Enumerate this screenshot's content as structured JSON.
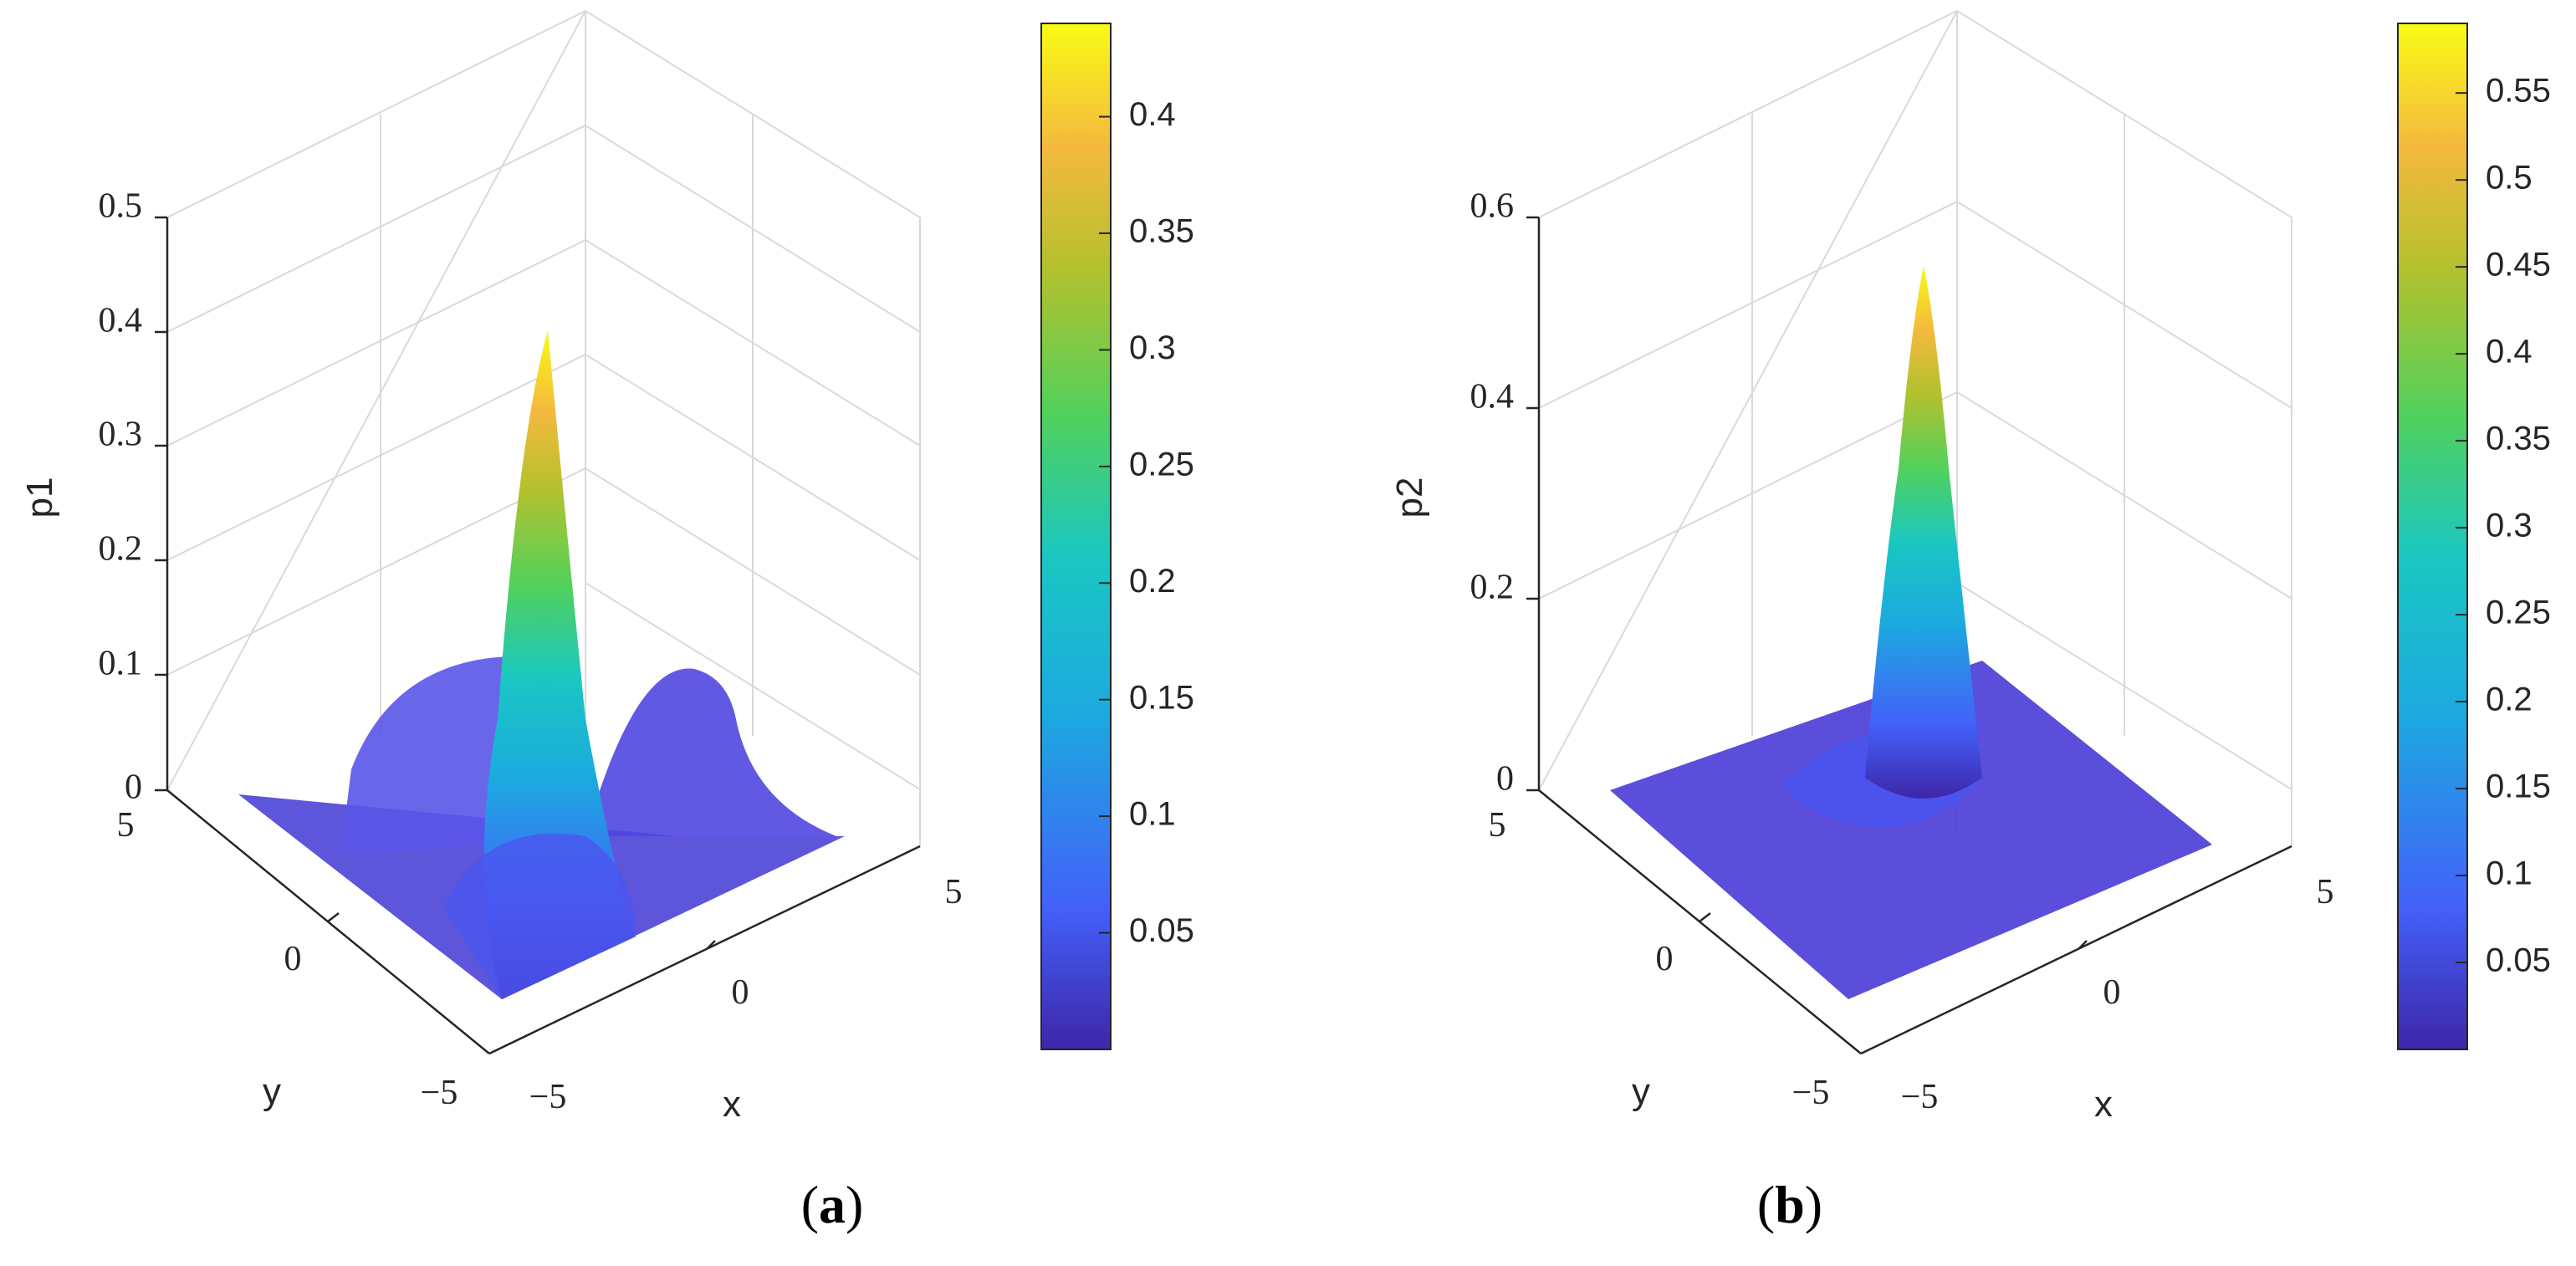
{
  "chart_data": [
    {
      "type": "surface",
      "panel": "a",
      "caption": {
        "open": "(",
        "letter": "a",
        "close": ")"
      },
      "zlabel": "p1",
      "xlabel": "x",
      "ylabel": "y",
      "x_ticks": [
        "−5",
        "0",
        "5"
      ],
      "y_ticks": [
        "−5",
        "0",
        "5"
      ],
      "z_ticks": [
        "0",
        "0.1",
        "0.2",
        "0.3",
        "0.4",
        "0.5"
      ],
      "xlim": [
        -5,
        5
      ],
      "ylim": [
        -5,
        5
      ],
      "zlim": [
        0,
        0.5
      ],
      "peak": 0.4,
      "peak_location": [
        0,
        0
      ],
      "shape": "central gaussian peak with ridges along the x and y axes",
      "colorbar": {
        "range": [
          0,
          0.44
        ],
        "ticks": [
          0.05,
          0.1,
          0.15,
          0.2,
          0.25,
          0.3,
          0.35,
          0.4
        ],
        "tick_labels": [
          "0.05",
          "0.1",
          "0.15",
          "0.2",
          "0.25",
          "0.3",
          "0.35",
          "0.4"
        ]
      },
      "colormap": [
        "#3e26a8",
        "#4361fa",
        "#1caadf",
        "#1ac7c2",
        "#52d15b",
        "#b3c12e",
        "#f4b93e",
        "#f9fb15"
      ]
    },
    {
      "type": "surface",
      "panel": "b",
      "caption": {
        "open": "(",
        "letter": "b",
        "close": ")"
      },
      "zlabel": "p2",
      "xlabel": "x",
      "ylabel": "y",
      "x_ticks": [
        "−5",
        "0",
        "5"
      ],
      "y_ticks": [
        "−5",
        "0",
        "5"
      ],
      "z_ticks": [
        "0",
        "0.2",
        "0.4",
        "0.6"
      ],
      "xlim": [
        -5,
        5
      ],
      "ylim": [
        -5,
        5
      ],
      "zlim": [
        0,
        0.6
      ],
      "peak": 0.55,
      "peak_location": [
        0,
        0
      ],
      "shape": "narrow central gaussian peak on a flat base",
      "colorbar": {
        "range": [
          0,
          0.59
        ],
        "ticks": [
          0.05,
          0.1,
          0.15,
          0.2,
          0.25,
          0.3,
          0.35,
          0.4,
          0.45,
          0.5,
          0.55
        ],
        "tick_labels": [
          "0.05",
          "0.1",
          "0.15",
          "0.2",
          "0.25",
          "0.3",
          "0.35",
          "0.4",
          "0.45",
          "0.5",
          "0.55"
        ]
      },
      "colormap": [
        "#3e26a8",
        "#4361fa",
        "#1caadf",
        "#1ac7c2",
        "#52d15b",
        "#b3c12e",
        "#f4b93e",
        "#f9fb15"
      ]
    }
  ]
}
